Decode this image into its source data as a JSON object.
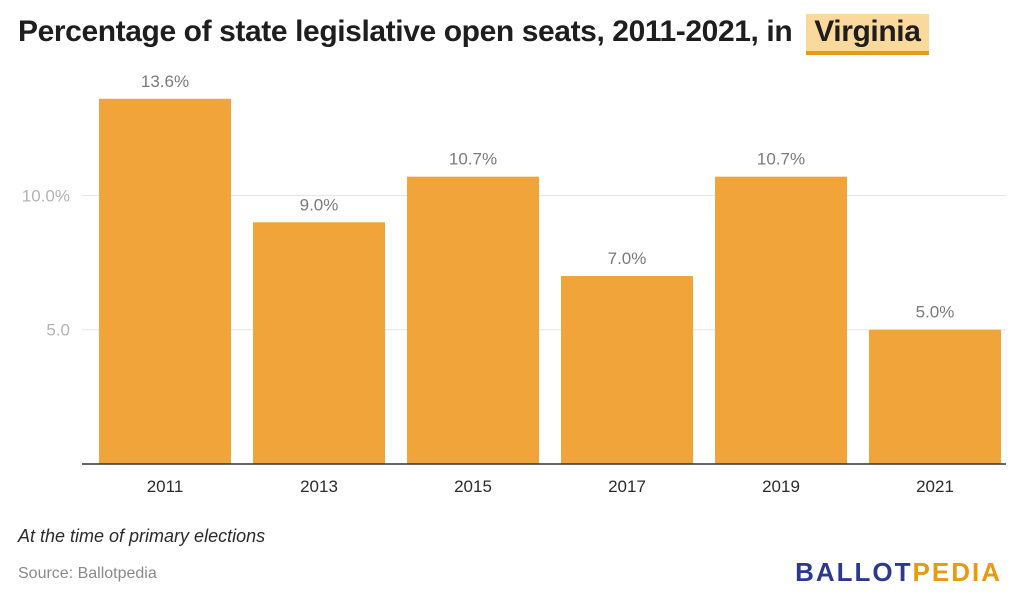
{
  "header": {
    "title_prefix": "Percentage of state legislative open seats, 2011-2021, in",
    "state": "Virginia"
  },
  "chart_data": {
    "type": "bar",
    "categories": [
      "2011",
      "2013",
      "2015",
      "2017",
      "2019",
      "2021"
    ],
    "values": [
      13.6,
      9.0,
      10.7,
      7.0,
      10.7,
      5.0
    ],
    "data_labels": [
      "13.6%",
      "9.0%",
      "10.7%",
      "7.0%",
      "10.7%",
      "5.0%"
    ],
    "ylim": [
      0,
      14.3
    ],
    "yticks": [
      {
        "value": 10,
        "label": "10.0%"
      },
      {
        "value": 5,
        "label": "5.0"
      }
    ],
    "grid": true,
    "bar_color": "#f0a43a",
    "grid_color": "#e6e6e6"
  },
  "footer": {
    "note": "At the time of primary elections",
    "source": "Source: Ballotpedia",
    "logo_part1": "BALLOT",
    "logo_part2": "PEDIA"
  },
  "colors": {
    "accent": "#e89a12",
    "highlight": "#fbd89c",
    "logo_blue": "#2b3a8f"
  }
}
